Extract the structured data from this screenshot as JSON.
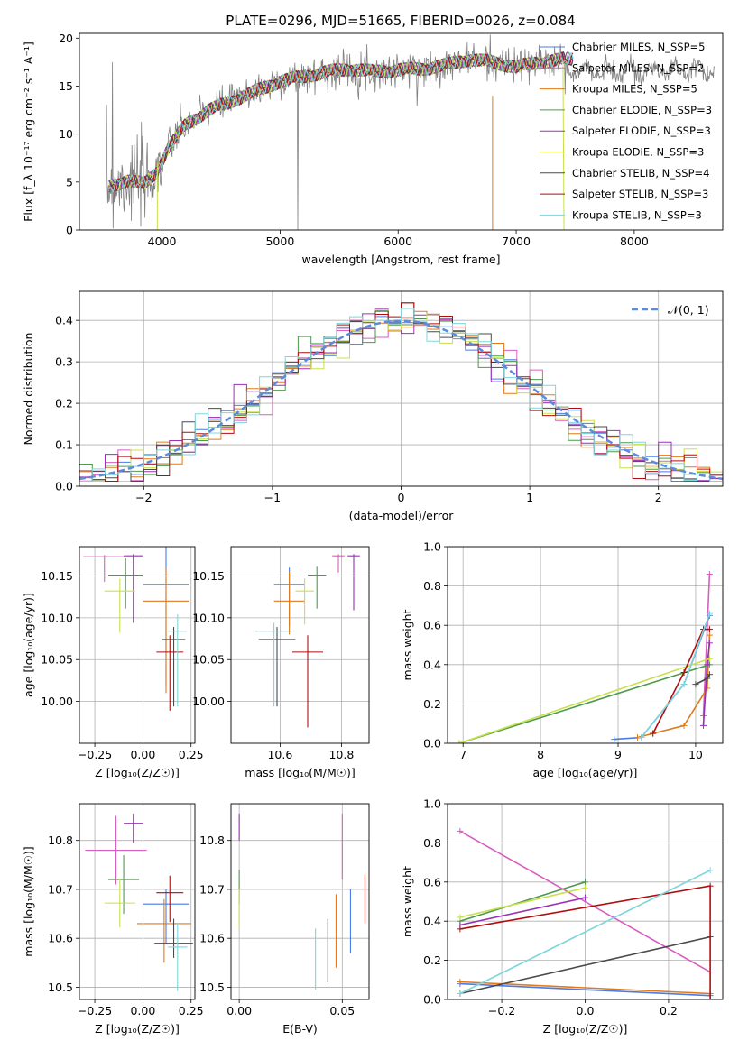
{
  "figure_title": "PLATE=0296, MJD=51665, FIBERID=0026, z=0.084",
  "series_colors": [
    "#4b7be5",
    "#d85ec0",
    "#e07a1a",
    "#4d9a4d",
    "#9b30b6",
    "#c8e04a",
    "#4a4a4a",
    "#b00e0e",
    "#7fd5dc"
  ],
  "chart_data": [
    {
      "id": "spectrum",
      "type": "line",
      "title": "PLATE=0296, MJD=51665, FIBERID=0026, z=0.084",
      "xlabel": "wavelength [Angstrom, rest frame]",
      "ylabel": "Flux [f_λ 10⁻¹⁷ erg cm⁻² s⁻¹ A⁻¹]",
      "xlim": [
        3300,
        8750
      ],
      "ylim": [
        0,
        20.5
      ],
      "xticks": [
        "4000",
        "5000",
        "6000",
        "7000",
        "8000"
      ],
      "yticks": [
        "0",
        "5",
        "10",
        "15",
        "20"
      ],
      "grid": false,
      "legend_position": "right",
      "legend": [
        {
          "label": "Chabrier MILES, N_SSP=5",
          "color": "#4b7be5"
        },
        {
          "label": "Salpeter MILES, N_SSP=2",
          "color": "#d85ec0"
        },
        {
          "label": "Kroupa MILES, N_SSP=5",
          "color": "#e07a1a"
        },
        {
          "label": "Chabrier ELODIE, N_SSP=3",
          "color": "#4d9a4d"
        },
        {
          "label": "Salpeter ELODIE, N_SSP=3",
          "color": "#9b30b6"
        },
        {
          "label": "Kroupa ELODIE, N_SSP=3",
          "color": "#c8e04a"
        },
        {
          "label": "Chabrier STELIB, N_SSP=4",
          "color": "#4a4a4a"
        },
        {
          "label": "Salpeter STELIB, N_SSP=3",
          "color": "#b00e0e"
        },
        {
          "label": "Kroupa STELIB, N_SSP=3",
          "color": "#7fd5dc"
        }
      ],
      "data_envelope": {
        "x": [
          3550,
          3700,
          3850,
          3950,
          4050,
          4200,
          4400,
          4600,
          4800,
          5000,
          5200,
          5400,
          5600,
          5800,
          6000,
          6200,
          6400,
          6600,
          6800,
          7000,
          7200,
          7400
        ],
        "y": [
          4.5,
          5.2,
          4.8,
          6.0,
          8.5,
          11.0,
          12.5,
          13.5,
          14.5,
          15.5,
          16.0,
          16.5,
          16.8,
          16.5,
          16.7,
          16.8,
          17.2,
          17.8,
          17.5,
          17.0,
          17.5,
          17.8
        ]
      }
    },
    {
      "id": "residuals",
      "type": "histogram",
      "xlabel": "(data-model)/error",
      "ylabel": "Normed distribution",
      "xlim": [
        -2.5,
        2.5
      ],
      "ylim": [
        0,
        0.47
      ],
      "xticks": [
        "−2",
        "−1",
        "0",
        "1",
        "2"
      ],
      "yticks": [
        "0.0",
        "0.1",
        "0.2",
        "0.3",
        "0.4"
      ],
      "grid": true,
      "legend_position": "upper right",
      "legend": [
        {
          "label": "𝒩(0, 1)",
          "color": "#5b8bd9"
        }
      ],
      "bin_width": 0.1
    },
    {
      "id": "age-vs-Z",
      "type": "scatter",
      "xlabel": "Z [log₁₀(Z/Z☉)]",
      "ylabel": "age  [log₁₀(age/yr)]",
      "xlim": [
        -0.33,
        0.27
      ],
      "ylim": [
        9.95,
        10.185
      ],
      "xticks": [
        "−0.25",
        "0.00",
        "0.25"
      ],
      "yticks": [
        "10.00",
        "10.05",
        "10.10",
        "10.15"
      ],
      "grid": true,
      "points": [
        {
          "x": 0.12,
          "y": 10.14,
          "xerr": 0.12,
          "yerr": [
            0.12,
            0.14
          ],
          "color": "#4b7be5"
        },
        {
          "x": -0.2,
          "y": 10.173,
          "xerr": 0.11,
          "yerr": [
            0.03,
            0.002
          ],
          "color": "#d85ec0"
        },
        {
          "x": 0.12,
          "y": 10.12,
          "xerr": 0.12,
          "yerr": [
            0.11,
            0.04
          ],
          "color": "#e07a1a"
        },
        {
          "x": -0.09,
          "y": 10.151,
          "xerr": 0.09,
          "yerr": [
            0.04,
            0.02
          ],
          "color": "#4d9a4d"
        },
        {
          "x": -0.05,
          "y": 10.174,
          "xerr": 0.05,
          "yerr": [
            0.08,
            0.002
          ],
          "color": "#9b30b6"
        },
        {
          "x": -0.12,
          "y": 10.132,
          "xerr": 0.08,
          "yerr": [
            0.05,
            0.015
          ],
          "color": "#c8e04a"
        },
        {
          "x": 0.16,
          "y": 10.074,
          "xerr": 0.06,
          "yerr": [
            0.08,
            0.015
          ],
          "color": "#4a4a4a"
        },
        {
          "x": 0.14,
          "y": 10.059,
          "xerr": 0.07,
          "yerr": [
            0.07,
            0.02
          ],
          "color": "#b00e0e"
        },
        {
          "x": 0.18,
          "y": 10.084,
          "xerr": 0.05,
          "yerr": [
            0.09,
            0.02
          ],
          "color": "#7fd5dc"
        }
      ]
    },
    {
      "id": "age-vs-mass",
      "type": "scatter",
      "xlabel": "mass [log₁₀(M/M☉)]",
      "ylabel": "",
      "xlim": [
        10.44,
        10.89
      ],
      "ylim": [
        9.95,
        10.185
      ],
      "xticks": [
        "10.6",
        "10.8"
      ],
      "yticks": [
        "10.00",
        "10.05",
        "10.10",
        "10.15"
      ],
      "grid": true,
      "points": [
        {
          "x": 10.63,
          "y": 10.14,
          "xerr": 0.05,
          "yerr": [
            0.05,
            0.02
          ],
          "color": "#4b7be5"
        },
        {
          "x": 10.79,
          "y": 10.174,
          "xerr": 0.02,
          "yerr": [
            0.02,
            0.002
          ],
          "color": "#d85ec0"
        },
        {
          "x": 10.63,
          "y": 10.12,
          "xerr": 0.05,
          "yerr": [
            0.04,
            0.035
          ],
          "color": "#e07a1a"
        },
        {
          "x": 10.72,
          "y": 10.151,
          "xerr": 0.03,
          "yerr": [
            0.04,
            0.01
          ],
          "color": "#4d9a4d"
        },
        {
          "x": 10.84,
          "y": 10.174,
          "xerr": 0.02,
          "yerr": [
            0.065,
            0.002
          ],
          "color": "#9b30b6"
        },
        {
          "x": 10.68,
          "y": 10.132,
          "xerr": 0.03,
          "yerr": [
            0.04,
            0.015
          ],
          "color": "#c8e04a"
        },
        {
          "x": 10.59,
          "y": 10.074,
          "xerr": 0.06,
          "yerr": [
            0.08,
            0.015
          ],
          "color": "#4a4a4a"
        },
        {
          "x": 10.69,
          "y": 10.059,
          "xerr": 0.05,
          "yerr": [
            0.09,
            0.02
          ],
          "color": "#b00e0e"
        },
        {
          "x": 10.58,
          "y": 10.084,
          "xerr": 0.06,
          "yerr": [
            0.09,
            0.01
          ],
          "color": "#7fd5dc"
        }
      ]
    },
    {
      "id": "weight-vs-age",
      "type": "line",
      "xlabel": "age  [log₁₀(age/yr)]",
      "ylabel": "mass weight",
      "xlim": [
        6.8,
        10.35
      ],
      "ylim": [
        0,
        1.0
      ],
      "xticks": [
        "7",
        "8",
        "9",
        "10"
      ],
      "yticks": [
        "0.0",
        "0.2",
        "0.4",
        "0.6",
        "0.8",
        "1.0"
      ],
      "grid": true,
      "series": [
        {
          "color": "#4b7be5",
          "x": [
            8.95,
            9.3,
            9.85,
            10.18
          ],
          "y": [
            0.02,
            0.03,
            0.3,
            0.65
          ]
        },
        {
          "color": "#d85ec0",
          "x": [
            10.1,
            10.18
          ],
          "y": [
            0.14,
            0.86
          ]
        },
        {
          "color": "#e07a1a",
          "x": [
            9.25,
            9.45,
            9.85,
            10.15,
            10.18
          ],
          "y": [
            0.03,
            0.05,
            0.09,
            0.28,
            0.55
          ]
        },
        {
          "color": "#4d9a4d",
          "x": [
            6.95,
            10.18
          ],
          "y": [
            0.0,
            0.4
          ]
        },
        {
          "color": "#9b30b6",
          "x": [
            10.1,
            10.15,
            10.18
          ],
          "y": [
            0.09,
            0.4,
            0.51
          ]
        },
        {
          "color": "#c8e04a",
          "x": [
            6.95,
            10.18
          ],
          "y": [
            0.0,
            0.43
          ]
        },
        {
          "color": "#4a4a4a",
          "x": [
            10.0,
            10.15,
            10.18
          ],
          "y": [
            0.3,
            0.33,
            0.35
          ]
        },
        {
          "color": "#b00e0e",
          "x": [
            9.45,
            9.85,
            10.1,
            10.18
          ],
          "y": [
            0.05,
            0.36,
            0.58,
            0.58
          ]
        },
        {
          "color": "#7fd5dc",
          "x": [
            9.3,
            9.85,
            10.18
          ],
          "y": [
            0.03,
            0.3,
            0.66
          ]
        }
      ]
    },
    {
      "id": "mass-vs-Z",
      "type": "scatter",
      "xlabel": "Z [log₁₀(Z/Z☉)]",
      "ylabel": "mass [log₁₀(M/M☉)]",
      "xlim": [
        -0.33,
        0.27
      ],
      "ylim": [
        10.475,
        10.875
      ],
      "xticks": [
        "−0.25",
        "0.00",
        "0.25"
      ],
      "yticks": [
        "10.5",
        "10.6",
        "10.7",
        "10.8"
      ],
      "grid": true,
      "points": [
        {
          "x": 0.12,
          "y": 10.67,
          "xerr": 0.12,
          "yerr": [
            0.08,
            0.03
          ],
          "color": "#4b7be5"
        },
        {
          "x": -0.14,
          "y": 10.78,
          "xerr": 0.16,
          "yerr": [
            0.07,
            0.07
          ],
          "color": "#d85ec0"
        },
        {
          "x": 0.11,
          "y": 10.63,
          "xerr": 0.14,
          "yerr": [
            0.08,
            0.05
          ],
          "color": "#e07a1a"
        },
        {
          "x": -0.1,
          "y": 10.72,
          "xerr": 0.08,
          "yerr": [
            0.07,
            0.05
          ],
          "color": "#4d9a4d"
        },
        {
          "x": -0.05,
          "y": 10.835,
          "xerr": 0.05,
          "yerr": [
            0.04,
            0.02
          ],
          "color": "#9b30b6"
        },
        {
          "x": -0.12,
          "y": 10.672,
          "xerr": 0.08,
          "yerr": [
            0.05,
            0.05
          ],
          "color": "#c8e04a"
        },
        {
          "x": 0.16,
          "y": 10.59,
          "xerr": 0.1,
          "yerr": [
            0.03,
            0.05
          ],
          "color": "#4a4a4a"
        },
        {
          "x": 0.14,
          "y": 10.693,
          "xerr": 0.07,
          "yerr": [
            0.06,
            0.035
          ],
          "color": "#b00e0e"
        },
        {
          "x": 0.18,
          "y": 10.582,
          "xerr": 0.05,
          "yerr": [
            0.09,
            0.05
          ],
          "color": "#7fd5dc"
        }
      ]
    },
    {
      "id": "mass-vs-EBV",
      "type": "scatter",
      "xlabel": "E(B-V)",
      "ylabel": "",
      "xlim": [
        -0.004,
        0.063
      ],
      "ylim": [
        10.475,
        10.875
      ],
      "xticks": [
        "0.00",
        "0.05"
      ],
      "yticks": [
        "10.5",
        "10.6",
        "10.7",
        "10.8"
      ],
      "grid": true,
      "points": [
        {
          "x": 0.054,
          "y": 10.635,
          "yerr": [
            0.065,
            0.065
          ],
          "color": "#4b7be5"
        },
        {
          "x": 0.05,
          "y": 10.765,
          "yerr": [
            0.045,
            0.09
          ],
          "color": "#d85ec0"
        },
        {
          "x": 0.047,
          "y": 10.61,
          "yerr": [
            0.07,
            0.08
          ],
          "color": "#e07a1a"
        },
        {
          "x": 0.0,
          "y": 10.7,
          "yerr": [
            0.03,
            0.04
          ],
          "color": "#4d9a4d"
        },
        {
          "x": 0.0,
          "y": 10.82,
          "yerr": [
            0.02,
            0.035
          ],
          "color": "#9b30b6"
        },
        {
          "x": 0.0,
          "y": 10.66,
          "yerr": [
            0.04,
            0.04
          ],
          "color": "#c8e04a"
        },
        {
          "x": 0.043,
          "y": 10.575,
          "yerr": [
            0.065,
            0.065
          ],
          "color": "#4a4a4a"
        },
        {
          "x": 0.061,
          "y": 10.665,
          "yerr": [
            0.035,
            0.065
          ],
          "color": "#b00e0e"
        },
        {
          "x": 0.037,
          "y": 10.56,
          "yerr": [
            0.065,
            0.06
          ],
          "color": "#7fd5dc"
        }
      ]
    },
    {
      "id": "weight-vs-Z",
      "type": "line",
      "xlabel": "Z [log₁₀(Z/Z☉)]",
      "ylabel": "mass weight",
      "xlim": [
        -0.33,
        0.33
      ],
      "ylim": [
        0,
        1.0
      ],
      "xticks": [
        "−0.2",
        "0.0",
        "0.2"
      ],
      "yticks": [
        "0.0",
        "0.2",
        "0.4",
        "0.6",
        "0.8",
        "1.0"
      ],
      "grid": true,
      "series": [
        {
          "color": "#4b7be5",
          "x": [
            -0.3,
            0.3
          ],
          "y": [
            0.08,
            0.02
          ]
        },
        {
          "color": "#d85ec0",
          "x": [
            -0.3,
            0.3
          ],
          "y": [
            0.86,
            0.14
          ]
        },
        {
          "color": "#e07a1a",
          "x": [
            -0.3,
            0.3
          ],
          "y": [
            0.09,
            0.03
          ]
        },
        {
          "color": "#4d9a4d",
          "x": [
            -0.3,
            0.0
          ],
          "y": [
            0.4,
            0.6
          ]
        },
        {
          "color": "#9b30b6",
          "x": [
            -0.3,
            0.0
          ],
          "y": [
            0.38,
            0.52
          ]
        },
        {
          "color": "#c8e04a",
          "x": [
            -0.3,
            0.0
          ],
          "y": [
            0.42,
            0.57
          ]
        },
        {
          "color": "#4a4a4a",
          "x": [
            -0.3,
            0.3
          ],
          "y": [
            0.03,
            0.32
          ]
        },
        {
          "color": "#b00e0e",
          "x": [
            -0.3,
            0.3,
            0.3
          ],
          "y": [
            0.36,
            0.58,
            0.0
          ]
        },
        {
          "color": "#7fd5dc",
          "x": [
            -0.3,
            0.3
          ],
          "y": [
            0.03,
            0.66
          ]
        }
      ]
    }
  ]
}
